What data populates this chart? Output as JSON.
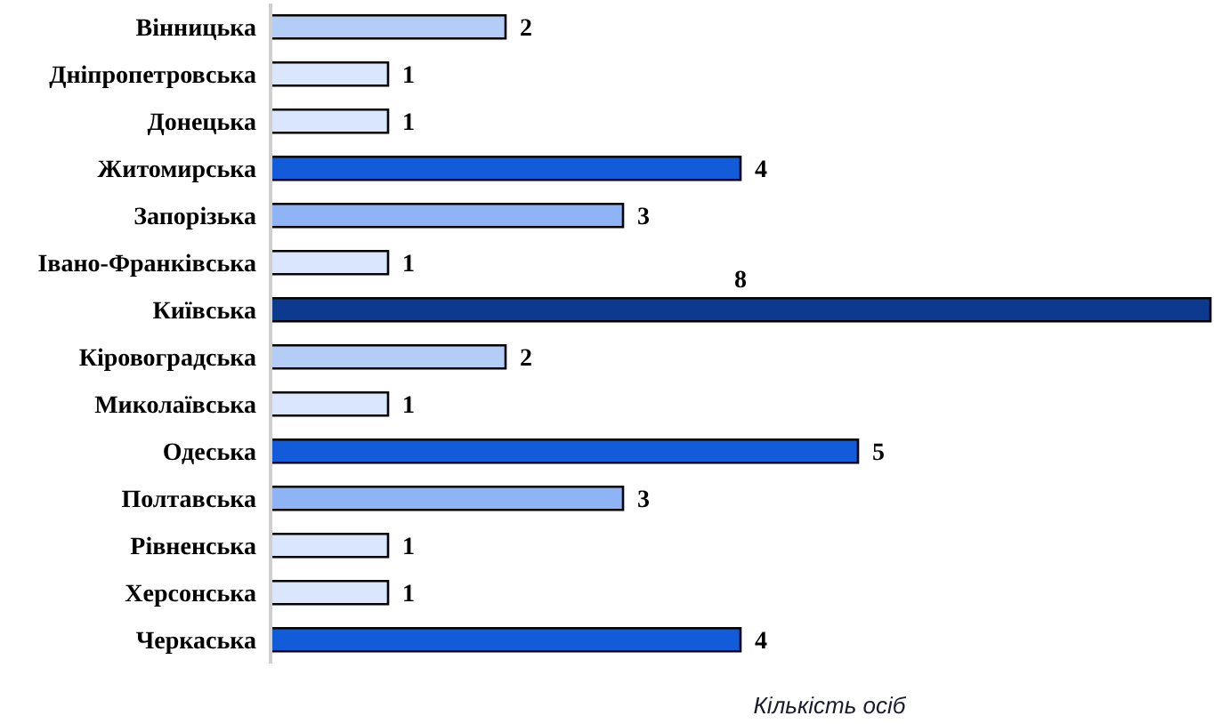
{
  "chart_data": {
    "type": "bar",
    "orientation": "horizontal",
    "xlabel": "Кількість осіб",
    "categories": [
      "Вінницька",
      "Дніпропетровська",
      "Донецька",
      "Житомирська",
      "Запорізька",
      "Івано-Франківська",
      "Київська",
      "Кіровоградська",
      "Миколаївська",
      "Одеська",
      "Полтавська",
      "Рівненська",
      "Херсонська",
      "Черкаська"
    ],
    "values": [
      2,
      1,
      1,
      4,
      3,
      1,
      8,
      2,
      1,
      5,
      3,
      1,
      1,
      4
    ],
    "colors": [
      "#b4cdf7",
      "#dae6fb",
      "#dae6fb",
      "#125bd9",
      "#8fb4f5",
      "#dae6fb",
      "#0b3a8f",
      "#b4cdf7",
      "#dae6fb",
      "#125bd9",
      "#8fb4f5",
      "#dae6fb",
      "#dae6fb",
      "#125bd9"
    ],
    "data_labels": true,
    "grid": false,
    "legend": false
  }
}
